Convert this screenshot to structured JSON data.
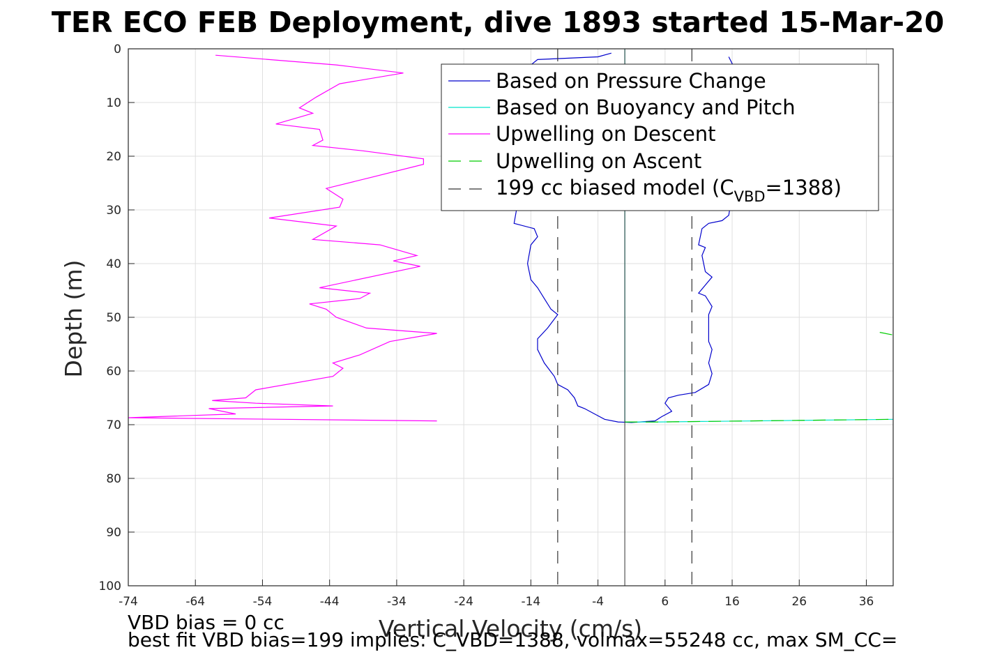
{
  "chart_data": {
    "type": "line",
    "title": "TER ECO FEB Deployment, dive 1893 started 15-Mar-20",
    "xlabel": "Vertical Velocity (cm/s)",
    "ylabel": "Depth (m)",
    "xlim": [
      -74,
      40
    ],
    "ylim": [
      0,
      100
    ],
    "y_reversed": true,
    "grid": true,
    "legend_position": "top-right",
    "x_ticks": [
      -74,
      -64,
      -54,
      -44,
      -34,
      -24,
      -14,
      -4,
      6,
      16,
      26,
      36
    ],
    "y_ticks": [
      0,
      10,
      20,
      30,
      40,
      50,
      60,
      70,
      80,
      90,
      100
    ],
    "series": [
      {
        "name": "Based on Pressure Change",
        "color": "#0000cc",
        "style": "solid",
        "points": [
          [
            -2.0,
            0.8
          ],
          [
            -4.0,
            1.5
          ],
          [
            -13.0,
            2.0
          ],
          [
            -14.5,
            3.5
          ],
          [
            -15.5,
            5.5
          ],
          [
            -16.0,
            9.0
          ],
          [
            -15.5,
            13.0
          ],
          [
            -16.0,
            17.0
          ],
          [
            -15.5,
            21.0
          ],
          [
            -16.5,
            25.0
          ],
          [
            -16.0,
            29.0
          ],
          [
            -16.5,
            32.5
          ],
          [
            -13.5,
            33.5
          ],
          [
            -13.0,
            35.0
          ],
          [
            -14.0,
            36.5
          ],
          [
            -14.5,
            40.0
          ],
          [
            -14.0,
            43.0
          ],
          [
            -13.0,
            44.5
          ],
          [
            -12.0,
            46.5
          ],
          [
            -11.0,
            48.5
          ],
          [
            -10.0,
            49.5
          ],
          [
            -11.5,
            52.0
          ],
          [
            -13.0,
            54.0
          ],
          [
            -13.0,
            56.0
          ],
          [
            -12.0,
            58.5
          ],
          [
            -10.5,
            61.0
          ],
          [
            -10.0,
            62.5
          ],
          [
            -8.5,
            63.5
          ],
          [
            -7.5,
            65.0
          ],
          [
            -7.0,
            66.5
          ],
          [
            -6.0,
            67.0
          ],
          [
            -4.5,
            68.0
          ],
          [
            -3.0,
            69.0
          ],
          [
            -1.0,
            69.5
          ],
          [
            1.0,
            69.6
          ],
          [
            4.5,
            69.3
          ],
          [
            5.5,
            68.5
          ],
          [
            7.0,
            67.5
          ],
          [
            6.0,
            66.0
          ],
          [
            6.5,
            65.0
          ],
          [
            8.0,
            64.5
          ],
          [
            10.5,
            64.0
          ],
          [
            12.5,
            62.5
          ],
          [
            13.0,
            60.5
          ],
          [
            12.5,
            58.5
          ],
          [
            13.0,
            56.0
          ],
          [
            12.5,
            54.5
          ],
          [
            12.5,
            52.0
          ],
          [
            12.5,
            49.5
          ],
          [
            13.0,
            48.0
          ],
          [
            12.0,
            46.0
          ],
          [
            11.0,
            45.5
          ],
          [
            13.0,
            42.5
          ],
          [
            12.0,
            41.5
          ],
          [
            11.5,
            38.5
          ],
          [
            12.0,
            37.0
          ],
          [
            11.0,
            36.5
          ],
          [
            11.5,
            33.5
          ],
          [
            12.5,
            32.5
          ],
          [
            14.5,
            32.0
          ],
          [
            15.5,
            31.0
          ],
          [
            16.0,
            27.0
          ],
          [
            16.5,
            22.0
          ],
          [
            16.0,
            16.0
          ],
          [
            16.5,
            10.0
          ],
          [
            16.5,
            4.0
          ],
          [
            15.5,
            1.5
          ]
        ]
      },
      {
        "name": "Based on Buoyancy and Pitch",
        "color": "#00e5cc",
        "style": "solid",
        "points": [
          [
            0.0,
            0.0
          ],
          [
            0.0,
            69.5
          ],
          [
            5.0,
            69.5
          ],
          [
            40.0,
            69.0
          ]
        ]
      },
      {
        "name": "Upwelling on Descent",
        "color": "#ff00ff",
        "style": "solid",
        "points": [
          [
            -61.0,
            1.2
          ],
          [
            -43.0,
            3.0
          ],
          [
            -33.0,
            4.5
          ],
          [
            -42.5,
            6.5
          ],
          [
            -46.0,
            9.0
          ],
          [
            -48.5,
            11.0
          ],
          [
            -46.5,
            12.0
          ],
          [
            -52.0,
            14.0
          ],
          [
            -45.5,
            15.0
          ],
          [
            -45.0,
            17.0
          ],
          [
            -46.5,
            18.0
          ],
          [
            -39.0,
            19.0
          ],
          [
            -30.0,
            20.5
          ],
          [
            -30.0,
            21.5
          ],
          [
            -38.0,
            24.0
          ],
          [
            -44.5,
            26.0
          ],
          [
            -42.0,
            28.0
          ],
          [
            -42.5,
            29.5
          ],
          [
            -53.0,
            31.5
          ],
          [
            -43.0,
            33.0
          ],
          [
            -46.5,
            35.5
          ],
          [
            -36.5,
            36.5
          ],
          [
            -31.0,
            38.5
          ],
          [
            -34.5,
            39.5
          ],
          [
            -30.5,
            40.5
          ],
          [
            -45.5,
            44.5
          ],
          [
            -38.0,
            45.5
          ],
          [
            -39.5,
            46.5
          ],
          [
            -47.0,
            47.5
          ],
          [
            -44.5,
            48.5
          ],
          [
            -43.0,
            50.0
          ],
          [
            -38.5,
            52.0
          ],
          [
            -28.0,
            53.0
          ],
          [
            -35.0,
            54.5
          ],
          [
            -39.5,
            57.0
          ],
          [
            -43.5,
            58.5
          ],
          [
            -42.0,
            59.5
          ],
          [
            -43.5,
            61.0
          ],
          [
            -55.0,
            63.5
          ],
          [
            -56.5,
            65.0
          ],
          [
            -61.5,
            65.5
          ],
          [
            -55.0,
            66.0
          ],
          [
            -43.5,
            66.5
          ],
          [
            -62.0,
            67.0
          ],
          [
            -58.0,
            68.0
          ],
          [
            -74.0,
            68.7
          ],
          [
            -28.0,
            69.3
          ]
        ]
      },
      {
        "name": "Upwelling on Ascent",
        "color": "#00cc00",
        "style": "dashed",
        "points": [
          [
            0.0,
            69.5
          ],
          [
            5.0,
            69.5
          ],
          [
            40.0,
            69.0
          ]
        ],
        "extra_segments": [
          [
            [
              38.0,
              52.8
            ],
            [
              40.0,
              53.3
            ]
          ]
        ]
      },
      {
        "name": "199 cc biased model (C",
        "name_subscript": "VBD",
        "name_suffix": "=1388)",
        "color": "#333333",
        "style": "dashed",
        "x_constants": [
          -10.0,
          10.0
        ]
      }
    ],
    "reference_line": {
      "x": 0,
      "color": "#333333"
    },
    "footer_lines": [
      "VBD bias = 0 cc",
      "best fit VBD bias=199 implies: C_VBD=1388, volmax=55248 cc, max SM_CC="
    ]
  }
}
